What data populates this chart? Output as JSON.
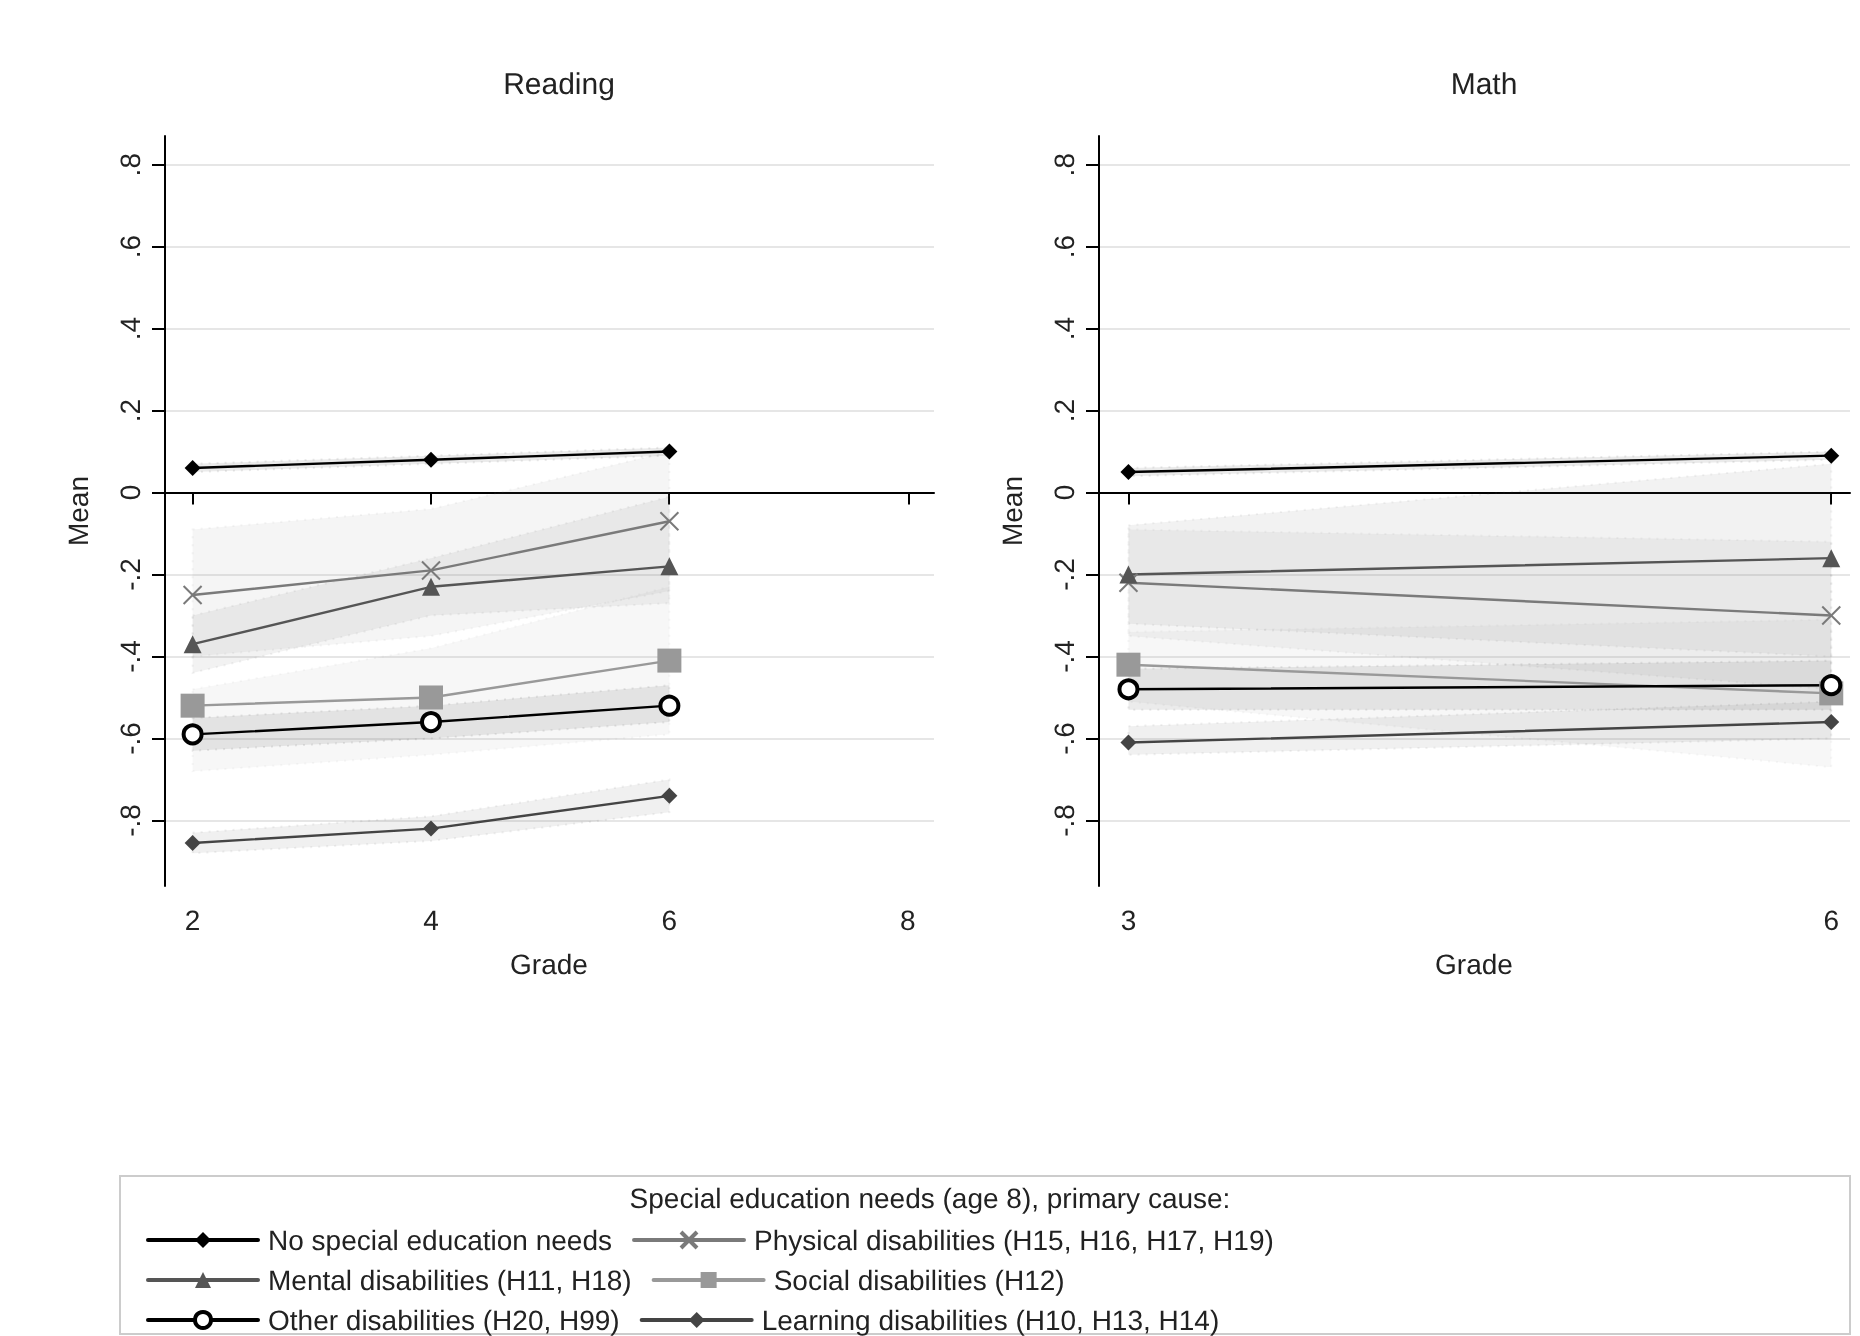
{
  "chart_data": [
    {
      "type": "line",
      "title": "Reading",
      "xlabel": "Grade",
      "ylabel": "Mean",
      "legend_title": "Special education needs (age 8), primary cause:",
      "legend": "bottom",
      "grid": "y",
      "line_style": "solid",
      "xlim": [
        1.76,
        8.22
      ],
      "xticks": [
        2,
        4,
        6,
        8
      ],
      "x": [
        2,
        4,
        6
      ],
      "ylim": [
        -0.96,
        0.87
      ],
      "yticks": [
        {
          "value": -0.8,
          "label": "-.8"
        },
        {
          "value": -0.6,
          "label": "-.6"
        },
        {
          "value": -0.4,
          "label": "-.4"
        },
        {
          "value": -0.2,
          "label": "-.2"
        },
        {
          "value": 0,
          "label": "0"
        },
        {
          "value": 0.2,
          "label": ".2"
        },
        {
          "value": 0.4,
          "label": ".4"
        },
        {
          "value": 0.6,
          "label": ".6"
        },
        {
          "value": 0.8,
          "label": ".8"
        }
      ],
      "series": [
        {
          "name": "No special education needs",
          "color": "#000000",
          "marker": "diamond",
          "values": [
            0.06,
            0.08,
            0.1
          ],
          "lower": [
            0.05,
            0.07,
            0.09
          ],
          "upper": [
            0.07,
            0.09,
            0.11
          ]
        },
        {
          "name": "Physical disabilities (H15, H16, H17, H19)",
          "color": "#7a7a7a",
          "marker": "cross",
          "values": [
            -0.25,
            -0.19,
            -0.07
          ],
          "lower": [
            -0.4,
            -0.35,
            -0.24
          ],
          "upper": [
            -0.09,
            -0.04,
            0.1
          ]
        },
        {
          "name": "Mental disabilities (H11, H18)",
          "color": "#555555",
          "marker": "triangle",
          "values": [
            -0.37,
            -0.23,
            -0.18
          ],
          "lower": [
            -0.44,
            -0.3,
            -0.27
          ],
          "upper": [
            -0.3,
            -0.16,
            -0.01
          ]
        },
        {
          "name": "Social disabilities (H12)",
          "color": "#999999",
          "marker": "square",
          "values": [
            -0.52,
            -0.5,
            -0.41
          ],
          "lower": [
            -0.68,
            -0.64,
            -0.59
          ],
          "upper": [
            -0.48,
            -0.38,
            -0.23
          ]
        },
        {
          "name": "Other disabilities (H20, H99)",
          "color": "#000000",
          "marker": "circle",
          "values": [
            -0.59,
            -0.56,
            -0.52
          ],
          "lower": [
            -0.63,
            -0.6,
            -0.56
          ],
          "upper": [
            -0.55,
            -0.52,
            -0.47
          ]
        },
        {
          "name": "Learning disabilities (H10, H13, H14)",
          "color": "#444444",
          "marker": "diamond",
          "values": [
            -0.855,
            -0.82,
            -0.74
          ],
          "lower": [
            -0.88,
            -0.85,
            -0.78
          ],
          "upper": [
            -0.83,
            -0.79,
            -0.7
          ]
        }
      ]
    },
    {
      "type": "line",
      "title": "Math",
      "xlabel": "Grade",
      "ylabel": "Mean",
      "grid": "y",
      "line_style": "solid",
      "xlim": [
        2.87,
        6.08
      ],
      "xticks": [
        3,
        6
      ],
      "x": [
        3,
        6
      ],
      "ylim": [
        -0.96,
        0.87
      ],
      "yticks": [
        {
          "value": -0.8,
          "label": "-.8"
        },
        {
          "value": -0.6,
          "label": "-.6"
        },
        {
          "value": -0.4,
          "label": "-.4"
        },
        {
          "value": -0.2,
          "label": "-.2"
        },
        {
          "value": 0,
          "label": "0"
        },
        {
          "value": 0.2,
          "label": ".2"
        },
        {
          "value": 0.4,
          "label": ".4"
        },
        {
          "value": 0.6,
          "label": ".6"
        },
        {
          "value": 0.8,
          "label": ".8"
        }
      ],
      "series": [
        {
          "name": "No special education needs",
          "color": "#000000",
          "marker": "diamond",
          "values": [
            0.05,
            0.09
          ],
          "lower": [
            0.04,
            0.08
          ],
          "upper": [
            0.06,
            0.1
          ]
        },
        {
          "name": "Physical disabilities (H15, H16, H17, H19)",
          "color": "#7a7a7a",
          "marker": "cross",
          "values": [
            -0.22,
            -0.3
          ],
          "lower": [
            -0.35,
            -0.48
          ],
          "upper": [
            -0.09,
            -0.12
          ]
        },
        {
          "name": "Mental disabilities (H11, H18)",
          "color": "#555555",
          "marker": "triangle",
          "values": [
            -0.2,
            -0.16
          ],
          "lower": [
            -0.32,
            -0.4
          ],
          "upper": [
            -0.08,
            0.07
          ]
        },
        {
          "name": "Social disabilities (H12)",
          "color": "#999999",
          "marker": "square",
          "values": [
            -0.42,
            -0.49
          ],
          "lower": [
            -0.51,
            -0.67
          ],
          "upper": [
            -0.34,
            -0.31
          ]
        },
        {
          "name": "Other disabilities (H20, H99)",
          "color": "#000000",
          "marker": "circle",
          "values": [
            -0.48,
            -0.47
          ],
          "lower": [
            -0.53,
            -0.53
          ],
          "upper": [
            -0.43,
            -0.41
          ]
        },
        {
          "name": "Learning disabilities (H10, H13, H14)",
          "color": "#444444",
          "marker": "diamond",
          "values": [
            -0.61,
            -0.56
          ],
          "lower": [
            -0.64,
            -0.6
          ],
          "upper": [
            -0.57,
            -0.51
          ]
        }
      ]
    }
  ]
}
